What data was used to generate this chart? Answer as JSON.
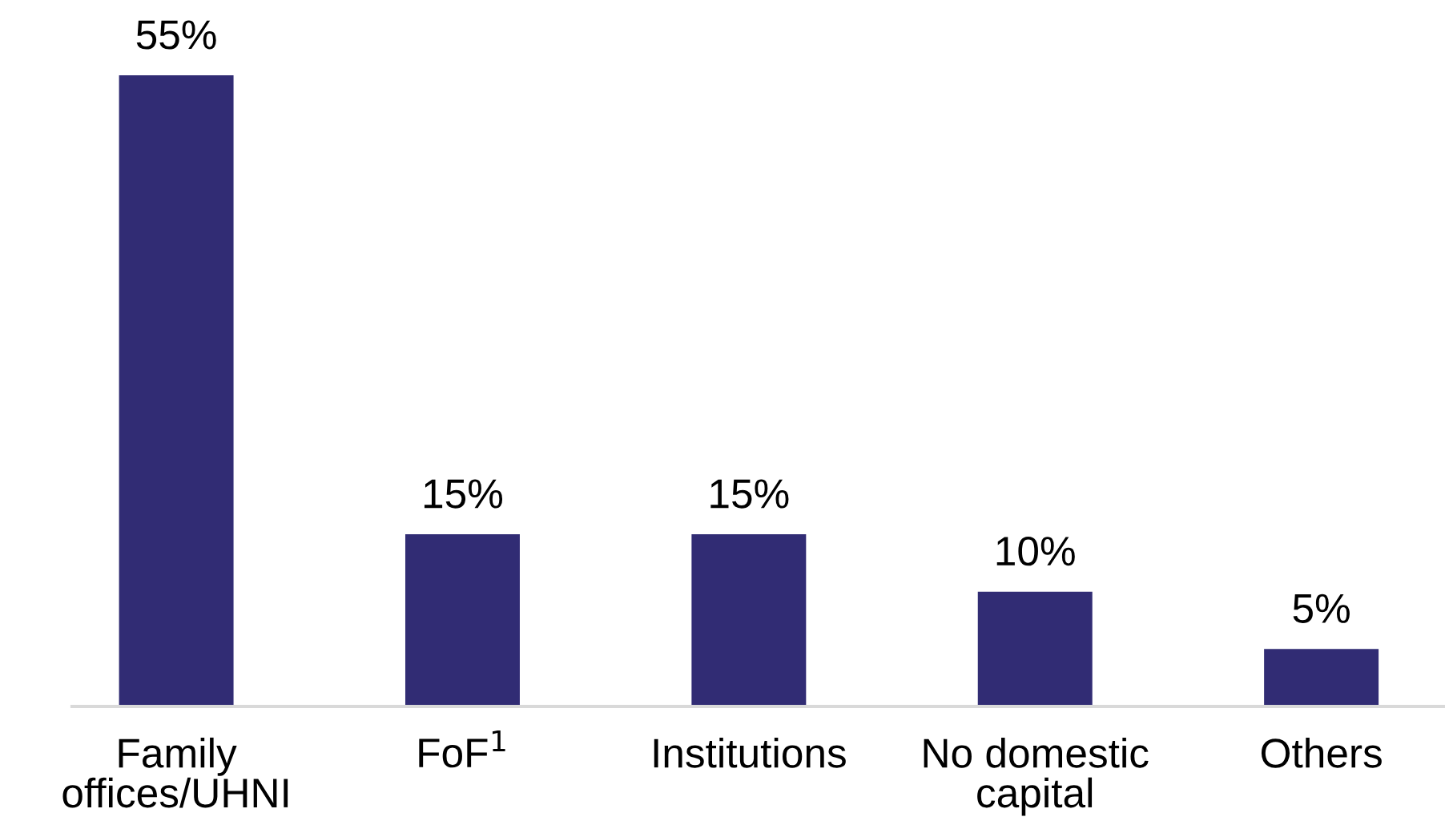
{
  "chart_data": {
    "type": "bar",
    "categories": [
      "Family\noffices/UHNI",
      "FoF$^{1}$",
      "Institutions",
      "No domestic\ncapital",
      "Others"
    ],
    "values": [
      55,
      15,
      15,
      10,
      5
    ],
    "value_labels": [
      "55%",
      "15%",
      "15%",
      "10%",
      "5%"
    ],
    "color": "#312c74",
    "grid": false
  }
}
